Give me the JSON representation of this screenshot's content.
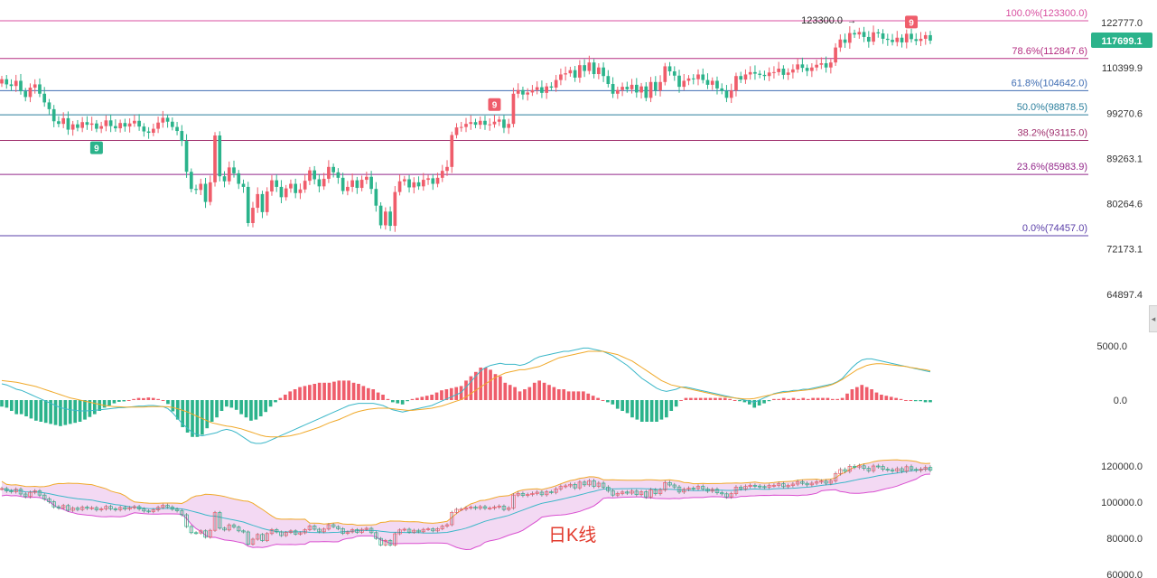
{
  "chart_data": [
    {
      "type": "candlestick",
      "title": "",
      "price_axis_ticks": [
        "122777.0",
        "110399.9",
        "99270.6",
        "89263.1",
        "80264.6",
        "72173.1",
        "64897.4"
      ],
      "current_price": "117699.1",
      "peak_label": "123300.0",
      "fibonacci_levels": [
        {
          "label": "100.0%(123300.0)",
          "price": 123300.0,
          "color": "#d84fa0"
        },
        {
          "label": "78.6%(112847.6)",
          "price": 112847.6,
          "color": "#b52e82"
        },
        {
          "label": "61.8%(104642.0)",
          "price": 104642.0,
          "color": "#3f6db3"
        },
        {
          "label": "50.0%(98878.5)",
          "price": 98878.5,
          "color": "#2a7e9c"
        },
        {
          "label": "38.2%(93115.0)",
          "price": 93115.0,
          "color": "#a0306e"
        },
        {
          "label": "23.6%(85983.9)",
          "price": 85983.9,
          "color": "#93278a"
        },
        {
          "label": "0.0%(74457.0)",
          "price": 74457.0,
          "color": "#5a3fa8"
        }
      ],
      "td_nine_markers": [
        {
          "label": "9",
          "direction": "down",
          "index": 20
        },
        {
          "label": "9",
          "direction": "up",
          "index": 104
        },
        {
          "label": "9",
          "direction": "up",
          "index": 192
        }
      ],
      "closes": [
        107500,
        106200,
        105800,
        107100,
        104500,
        103100,
        105400,
        106200,
        103900,
        101800,
        100200,
        97400,
        96800,
        98100,
        95500,
        96700,
        95900,
        97200,
        96600,
        96900,
        95700,
        96300,
        97600,
        96300,
        95800,
        97000,
        96200,
        96900,
        97500,
        96200,
        95100,
        94800,
        95700,
        97100,
        98200,
        97300,
        96100,
        95200,
        93000,
        86500,
        83100,
        82900,
        84100,
        80600,
        84400,
        94200,
        85600,
        84600,
        87400,
        86200,
        84100,
        83500,
        76700,
        79500,
        82100,
        78700,
        82600,
        84800,
        83500,
        81500,
        83200,
        84100,
        82300,
        83000,
        84700,
        86800,
        85000,
        83600,
        85100,
        87500,
        86400,
        85300,
        82700,
        83500,
        84800,
        83300,
        84900,
        85500,
        83100,
        79900,
        76300,
        78800,
        76200,
        82500,
        84600,
        85000,
        83400,
        84400,
        83600,
        84900,
        85200,
        84100,
        85300,
        86700,
        87500,
        94300,
        96000,
        96100,
        96800,
        97200,
        96600,
        97500,
        96600,
        96700,
        97300,
        97800,
        95900,
        96800,
        103900,
        104800,
        103700,
        104200,
        104800,
        105500,
        104100,
        105700,
        105400,
        107300,
        108700,
        109000,
        109800,
        107900,
        111100,
        109600,
        111800,
        108800,
        110500,
        108300,
        106300,
        103900,
        104800,
        105600,
        105000,
        106100,
        104200,
        105700,
        102900,
        106800,
        104700,
        106800,
        110800,
        109500,
        108400,
        105600,
        107100,
        107700,
        107500,
        108700,
        107300,
        106100,
        107100,
        105200,
        104600,
        102900,
        104700,
        108300,
        107400,
        108700,
        109300,
        108900,
        108600,
        108300,
        109200,
        109300,
        110200,
        108600,
        109200,
        110000,
        111300,
        110400,
        109600,
        110500,
        111200,
        111600,
        110500,
        111800,
        115800,
        118000,
        117100,
        119800,
        119400,
        120100,
        118700,
        117400,
        120000,
        119700,
        118200,
        117900,
        117300,
        118500,
        117200,
        119600,
        118100,
        117600,
        118200,
        119200,
        117700
      ],
      "macd": {
        "ticks": [
          "5000.0",
          "0.0"
        ],
        "dif": [
          1500,
          1400,
          1200,
          1000,
          900,
          700,
          500,
          300,
          100,
          -100,
          -300,
          -500,
          -700,
          -800,
          -900,
          -950,
          -1000,
          -1000,
          -980,
          -950,
          -900,
          -850,
          -800,
          -750,
          -700,
          -700,
          -650,
          -600,
          -550,
          -550,
          -500,
          -500,
          -550,
          -600,
          -800,
          -1200,
          -1700,
          -2200,
          -2600,
          -3000,
          -3200,
          -3300,
          -3200,
          -3100,
          -3000,
          -2800,
          -2700,
          -2800,
          -3000,
          -3300,
          -3600,
          -3900,
          -4000,
          -4000,
          -3900,
          -3700,
          -3500,
          -3300,
          -3100,
          -2900,
          -2700,
          -2500,
          -2300,
          -2100,
          -1900,
          -1700,
          -1500,
          -1300,
          -1100,
          -900,
          -700,
          -500,
          -400,
          -300,
          -300,
          -300,
          -300,
          -400,
          -500,
          -700,
          -900,
          -1000,
          -1100,
          -1000,
          -900,
          -800,
          -700,
          -600,
          -500,
          -300,
          -100,
          100,
          300,
          500,
          700,
          1200,
          1700,
          2200,
          2700,
          3000,
          3200,
          3300,
          3400,
          3300,
          3300,
          3300,
          3200,
          3300,
          3500,
          3800,
          4000,
          4100,
          4200,
          4300,
          4400,
          4500,
          4500,
          4600,
          4700,
          4800,
          4800,
          4700,
          4600,
          4500,
          4300,
          4100,
          3800,
          3500,
          3200,
          2800,
          2400,
          2000,
          1700,
          1400,
          1100,
          900,
          800,
          900,
          1000,
          1200,
          1200,
          1100,
          1000,
          900,
          800,
          700,
          600,
          500,
          400,
          300,
          200,
          100,
          0,
          -100,
          -200,
          0,
          200,
          400,
          600,
          700,
          800,
          800,
          900,
          900,
          1000,
          1000,
          1100,
          1200,
          1300,
          1400,
          1500,
          1700,
          2000,
          2500,
          3000,
          3400,
          3700,
          3800,
          3800,
          3700,
          3600,
          3500,
          3400,
          3300,
          3200,
          3100,
          3000,
          2900,
          2800,
          2700,
          2600
        ],
        "dea": [
          1800,
          1750,
          1700,
          1650,
          1550,
          1450,
          1350,
          1250,
          1100,
          950,
          800,
          650,
          500,
          350,
          200,
          100,
          0,
          -100,
          -200,
          -300,
          -400,
          -500,
          -550,
          -600,
          -620,
          -640,
          -650,
          -650,
          -650,
          -640,
          -620,
          -600,
          -600,
          -600,
          -620,
          -680,
          -800,
          -950,
          -1100,
          -1300,
          -1500,
          -1700,
          -1900,
          -2100,
          -2200,
          -2300,
          -2400,
          -2450,
          -2550,
          -2650,
          -2800,
          -2950,
          -3100,
          -3250,
          -3350,
          -3400,
          -3400,
          -3400,
          -3350,
          -3300,
          -3200,
          -3100,
          -2950,
          -2800,
          -2650,
          -2500,
          -2300,
          -2100,
          -1950,
          -1800,
          -1600,
          -1400,
          -1200,
          -1050,
          -950,
          -850,
          -800,
          -750,
          -750,
          -750,
          -800,
          -850,
          -900,
          -950,
          -950,
          -900,
          -850,
          -800,
          -750,
          -650,
          -550,
          -400,
          -250,
          -100,
          50,
          300,
          600,
          900,
          1200,
          1500,
          1800,
          2100,
          2300,
          2500,
          2600,
          2700,
          2800,
          2800,
          2900,
          3000,
          3100,
          3300,
          3500,
          3700,
          3900,
          4000,
          4100,
          4200,
          4300,
          4400,
          4500,
          4500,
          4500,
          4500,
          4400,
          4300,
          4200,
          4000,
          3800,
          3600,
          3300,
          3000,
          2700,
          2400,
          2100,
          1800,
          1600,
          1400,
          1300,
          1200,
          1100,
          1000,
          900,
          800,
          700,
          600,
          500,
          400,
          300,
          250,
          200,
          150,
          100,
          100,
          150,
          250,
          350,
          450,
          550,
          650,
          700,
          750,
          800,
          850,
          900,
          950,
          1000,
          1100,
          1200,
          1300,
          1450,
          1650,
          1900,
          2200,
          2500,
          2800,
          3000,
          3200,
          3300,
          3350,
          3350,
          3300,
          3250,
          3200,
          3150,
          3100,
          3000,
          2950,
          2850,
          2800,
          2700
        ]
      },
      "bollinger": {
        "ticks": [
          "120000.0",
          "100000.0",
          "80000.0",
          "60000.0"
        ]
      },
      "watermark": "日K线"
    }
  ],
  "ui": {
    "collapse_icon": "chevron-left-icon"
  }
}
